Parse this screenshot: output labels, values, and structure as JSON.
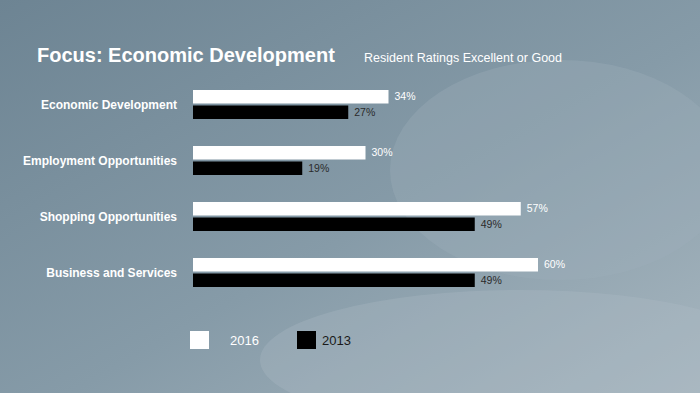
{
  "chart_data": {
    "type": "bar",
    "orientation": "horizontal",
    "title": "Focus: Economic Development",
    "subtitle": "Resident Ratings Excellent or Good",
    "categories": [
      "Economic Development",
      "Employment Opportunities",
      "Shopping Opportunities",
      "Business and Services"
    ],
    "series": [
      {
        "name": "2016",
        "color": "#ffffff",
        "values": [
          34,
          30,
          57,
          60
        ],
        "value_labels": [
          "34%",
          "30%",
          "57%",
          "60%"
        ]
      },
      {
        "name": "2013",
        "color": "#000000",
        "values": [
          27,
          19,
          49,
          49
        ],
        "value_labels": [
          "27%",
          "19%",
          "49%",
          "49%"
        ]
      }
    ],
    "xlim": [
      0,
      60
    ],
    "data_labels": true,
    "tick_labels": "y",
    "grid": false,
    "legend": "bottom"
  }
}
